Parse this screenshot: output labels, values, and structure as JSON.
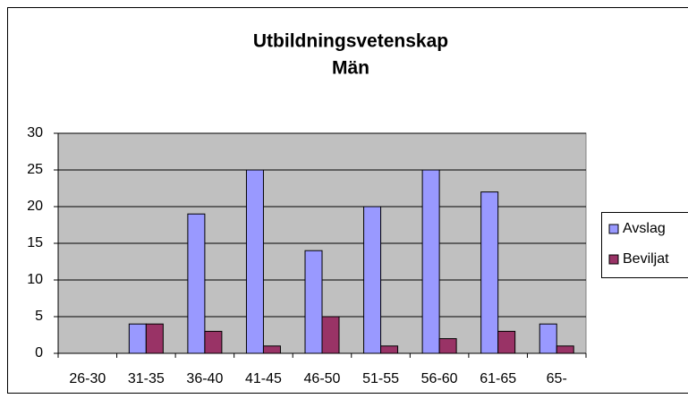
{
  "chart_data": {
    "type": "bar",
    "title": "Utbildningsvetenskap",
    "subtitle": "Män",
    "categories": [
      "26-30",
      "31-35",
      "36-40",
      "41-45",
      "46-50",
      "51-55",
      "56-60",
      "61-65",
      "65-"
    ],
    "series": [
      {
        "name": "Avslag",
        "color": "#9999ff",
        "values": [
          0,
          4,
          19,
          25,
          14,
          20,
          25,
          22,
          4
        ]
      },
      {
        "name": "Beviljat",
        "color": "#993366",
        "values": [
          0,
          4,
          3,
          1,
          5,
          1,
          2,
          3,
          1
        ]
      }
    ],
    "ylim": [
      0,
      30
    ],
    "yticks": [
      0,
      5,
      10,
      15,
      20,
      25,
      30
    ],
    "grid": true,
    "legend": "right"
  }
}
